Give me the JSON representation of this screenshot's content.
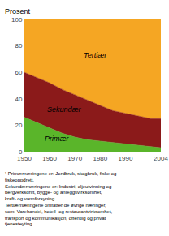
{
  "chart_data": {
    "type": "area",
    "stacked": true,
    "x": [
      1950,
      1955,
      1960,
      1965,
      1970,
      1975,
      1980,
      1985,
      1990,
      1995,
      2000,
      2004
    ],
    "series": [
      {
        "name": "Primær",
        "color": "#5ab52a",
        "values": [
          26,
          22,
          18,
          14,
          11,
          9,
          8,
          7,
          6,
          5,
          4,
          3
        ]
      },
      {
        "name": "Sekundær",
        "color": "#8b1a1a",
        "values": [
          34,
          34,
          34,
          33,
          32,
          30,
          27,
          24,
          23,
          22,
          21,
          22
        ]
      },
      {
        "name": "Tertiær",
        "color": "#f5a623",
        "values": [
          40,
          44,
          48,
          53,
          57,
          61,
          65,
          69,
          71,
          73,
          75,
          75
        ]
      }
    ],
    "ylabel": "Prosent",
    "xlim": [
      1950,
      2004
    ],
    "xticks": [
      1950,
      1960,
      1970,
      1980,
      1990,
      2004
    ],
    "ylim": [
      0,
      100
    ],
    "yticks": [
      0,
      20,
      40,
      60,
      80,
      100
    ],
    "grid": true,
    "annotations": [
      {
        "text": "Tertiær",
        "x": 1978,
        "y": 73
      },
      {
        "text": "Sekundær",
        "x": 1966,
        "y": 32
      },
      {
        "text": "Primær",
        "x": 1963,
        "y": 10
      }
    ],
    "footnote": [
      "¹ Primærnæringene er: Jordbruk, skogbruk, fiske og",
      "fiskeoppdrett.",
      "Sekundærnæringene er: Industri, oljeutvinning og",
      "bergverksdrift, bygge- og anleggsvirksomhet,",
      "kraft- og vannforsyning.",
      "Tertiærnæringene omfatter de øvrige næringer,",
      "som: Varehandel, hotell- og restaurantvirksomhet,",
      "transport og kommunikasjon, offentlig og privat",
      "tjenesteyting."
    ]
  }
}
